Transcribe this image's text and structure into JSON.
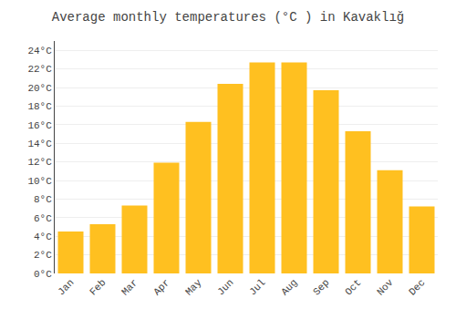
{
  "chart_data": {
    "type": "bar",
    "title": "Average monthly temperatures (°C ) in Kavaklığ",
    "categories": [
      "Jan",
      "Feb",
      "Mar",
      "Apr",
      "May",
      "Jun",
      "Jul",
      "Aug",
      "Sep",
      "Oct",
      "Nov",
      "Dec"
    ],
    "values": [
      4.5,
      5.3,
      7.3,
      11.9,
      16.3,
      20.4,
      22.7,
      22.7,
      19.7,
      15.3,
      11.1,
      7.2
    ],
    "color": "#FFC020",
    "ylim": [
      0,
      25
    ],
    "yticks": [
      {
        "value": 0,
        "label": "0°C"
      },
      {
        "value": 2,
        "label": "2°C"
      },
      {
        "value": 4,
        "label": "4°C"
      },
      {
        "value": 6,
        "label": "6°C"
      },
      {
        "value": 8,
        "label": "8°C"
      },
      {
        "value": 10,
        "label": "10°C"
      },
      {
        "value": 12,
        "label": "12°C"
      },
      {
        "value": 14,
        "label": "14°C"
      },
      {
        "value": 16,
        "label": "16°C"
      },
      {
        "value": 18,
        "label": "18°C"
      },
      {
        "value": 20,
        "label": "20°C"
      },
      {
        "value": 22,
        "label": "22°C"
      },
      {
        "value": 24,
        "label": "24°C"
      }
    ],
    "grid": true
  }
}
